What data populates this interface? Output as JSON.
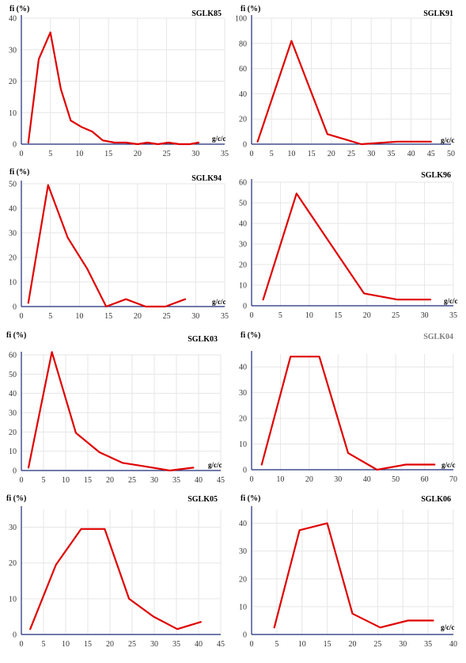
{
  "chart_data": [
    {
      "type": "line",
      "title": "SGLK85",
      "ylabel": "fi (%)",
      "xlabel": "g/c/c",
      "xlim": [
        0,
        35
      ],
      "xticks": [
        0,
        5,
        10,
        15,
        20,
        25,
        30,
        35
      ],
      "ylim": [
        0,
        40
      ],
      "yticks": [
        0,
        10,
        20,
        30,
        40
      ],
      "series": [
        {
          "x": [
            1.2,
            3,
            5,
            6.8,
            8.5,
            10.3,
            12.2,
            14,
            16,
            18,
            20,
            21.7,
            23.5,
            25.3,
            27.2,
            29,
            30.5
          ],
          "y": [
            0.5,
            27,
            35.5,
            17.5,
            7.5,
            5.5,
            4,
            1.2,
            0.5,
            0.5,
            0,
            0.5,
            0,
            0.5,
            0,
            0,
            0.5
          ]
        }
      ]
    },
    {
      "type": "line",
      "title": "SGLK91",
      "ylabel": "fi (%)",
      "xlabel": "g/c/c",
      "xlim": [
        0,
        50
      ],
      "xticks": [
        0,
        5,
        10,
        15,
        20,
        25,
        30,
        35,
        40,
        45,
        50
      ],
      "ylim": [
        0,
        100
      ],
      "yticks": [
        0,
        20,
        40,
        60,
        80,
        100
      ],
      "series": [
        {
          "x": [
            1.5,
            10,
            19,
            27.5,
            36.5,
            45
          ],
          "y": [
            2,
            82,
            8,
            0,
            2,
            2
          ]
        }
      ]
    },
    {
      "type": "line",
      "title": "SGLK94",
      "ylabel": "fi (%)",
      "xlabel": "g/c/c",
      "xlim": [
        0,
        35
      ],
      "xticks": [
        0,
        5,
        10,
        15,
        20,
        25,
        30,
        35
      ],
      "ylim": [
        0,
        50
      ],
      "yticks": [
        0,
        10,
        20,
        30,
        40,
        50
      ],
      "series": [
        {
          "x": [
            1.2,
            4.6,
            8,
            11.3,
            14.6,
            18,
            21.4,
            24.8,
            28.2
          ],
          "y": [
            1.5,
            49.5,
            28,
            15.5,
            0,
            3,
            0,
            0,
            3
          ]
        }
      ]
    },
    {
      "type": "line",
      "title": "SGLK96",
      "ylabel": "",
      "xlabel": "g/c/c",
      "xlim": [
        0,
        35
      ],
      "xticks": [
        0,
        5,
        10,
        15,
        20,
        25,
        30,
        35
      ],
      "ylim": [
        0,
        60
      ],
      "yticks": [
        0,
        10,
        20,
        30,
        40,
        50,
        60
      ],
      "series": [
        {
          "x": [
            2,
            7.8,
            13.7,
            19.5,
            25.3,
            31
          ],
          "y": [
            3,
            54.5,
            30,
            6,
            3,
            3
          ]
        }
      ]
    },
    {
      "type": "line",
      "title": "SGLK03",
      "ylabel": "fi (%)",
      "xlabel": "g/c/c",
      "xlim": [
        0,
        45
      ],
      "xticks": [
        0,
        5,
        10,
        15,
        20,
        25,
        30,
        35,
        40,
        45
      ],
      "ylim": [
        0,
        60
      ],
      "yticks": [
        0,
        10,
        20,
        30,
        40,
        50,
        60
      ],
      "series": [
        {
          "x": [
            1.6,
            6.9,
            12.3,
            17.6,
            22.8,
            28.2,
            33.5,
            38.8
          ],
          "y": [
            1.5,
            61.5,
            19.5,
            9.5,
            4,
            2,
            0,
            1.5
          ]
        }
      ]
    },
    {
      "type": "line",
      "title": "SGLK04",
      "ylabel": "fi (%)",
      "xlabel": "g/c/c",
      "xlim": [
        0,
        70
      ],
      "xticks": [
        0,
        10,
        20,
        30,
        40,
        50,
        60,
        70
      ],
      "ylim": [
        0,
        45
      ],
      "yticks": [
        0,
        10,
        20,
        30,
        40
      ],
      "series": [
        {
          "x": [
            3.5,
            13.5,
            23.5,
            33.5,
            43.5,
            53.5,
            63.5
          ],
          "y": [
            2,
            44,
            44,
            6.5,
            0,
            2,
            2
          ]
        }
      ]
    },
    {
      "type": "line",
      "title": "SGLK05",
      "ylabel": "fi (%)",
      "xlabel": "",
      "xlim": [
        0,
        45
      ],
      "xticks": [
        0,
        5,
        10,
        15,
        20,
        25,
        30,
        35,
        40,
        45
      ],
      "ylim": [
        0,
        35
      ],
      "yticks": [
        0,
        10,
        20,
        30
      ],
      "series": [
        {
          "x": [
            2,
            7.8,
            13.5,
            18.8,
            24.3,
            29.8,
            35.2,
            40.5
          ],
          "y": [
            1.5,
            19.5,
            29.5,
            29.5,
            10,
            5,
            1.5,
            3.5
          ]
        }
      ]
    },
    {
      "type": "line",
      "title": "SGLK06",
      "ylabel": "fi (%)",
      "xlabel": "g/c/c",
      "xlim": [
        0,
        40
      ],
      "xticks": [
        0,
        5,
        10,
        15,
        20,
        25,
        30,
        35,
        40
      ],
      "ylim": [
        0,
        45
      ],
      "yticks": [
        0,
        10,
        20,
        30,
        40
      ],
      "series": [
        {
          "x": [
            4.5,
            9.5,
            15,
            20,
            25.5,
            31,
            36
          ],
          "y": [
            2.5,
            37.5,
            40,
            7.5,
            2.5,
            5,
            5
          ]
        }
      ]
    }
  ],
  "colors": {
    "line": "#e00000",
    "grid": "#e6e6e6",
    "axis": "#1c2a7a",
    "title_gray": "#808080",
    "title_dark": "#000000"
  }
}
